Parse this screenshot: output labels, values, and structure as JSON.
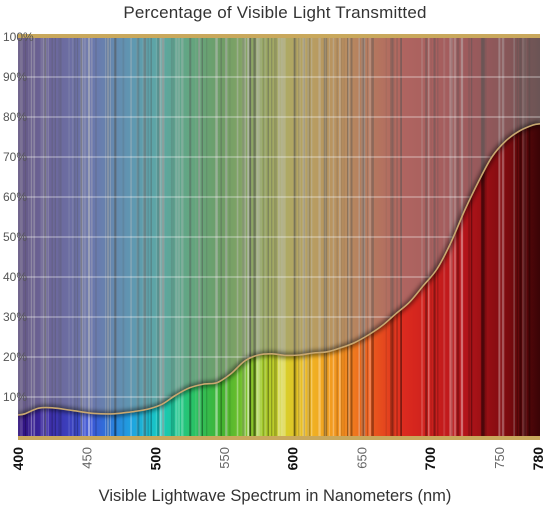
{
  "chart_data": {
    "type": "area",
    "title": "Percentage of Visible Light Transmitted",
    "xlabel": "Visible Lightwave Spectrum in Nanometers (nm)",
    "ylabel": "",
    "xlim": [
      400,
      780
    ],
    "ylim": [
      0,
      100
    ],
    "x_ticks": [
      400,
      450,
      500,
      550,
      600,
      650,
      700,
      750,
      780
    ],
    "x_ticks_bold": [
      400,
      500,
      600,
      700,
      780
    ],
    "y_ticks": [
      10,
      20,
      30,
      40,
      50,
      60,
      70,
      80,
      90,
      100
    ],
    "y_tick_suffix": "%",
    "grid": true,
    "legend": "none",
    "series": [
      {
        "x": [
          400,
          405,
          415,
          425,
          440,
          455,
          470,
          485,
          495,
          505,
          515,
          525,
          535,
          545,
          555,
          565,
          575,
          585,
          595,
          605,
          615,
          625,
          635,
          645,
          655,
          665,
          675,
          685,
          695,
          705,
          715,
          725,
          735,
          745,
          755,
          765,
          775,
          780
        ],
        "y": [
          5.5,
          5.8,
          7.2,
          7.3,
          6.6,
          5.9,
          5.8,
          6.4,
          7.0,
          8.2,
          10.5,
          12.3,
          13.2,
          13.6,
          15.8,
          19.0,
          20.5,
          20.8,
          20.4,
          20.5,
          21.0,
          21.3,
          22.3,
          23.6,
          25.5,
          27.8,
          30.8,
          33.7,
          37.8,
          42.0,
          48.5,
          56.5,
          63.7,
          70.0,
          74.0,
          76.5,
          78.0,
          78.3
        ]
      }
    ],
    "colors": {
      "border": "#c9a85c",
      "curve": "#c9a870",
      "grid": "#ffffff",
      "overlay": "#8f8f8f"
    }
  }
}
